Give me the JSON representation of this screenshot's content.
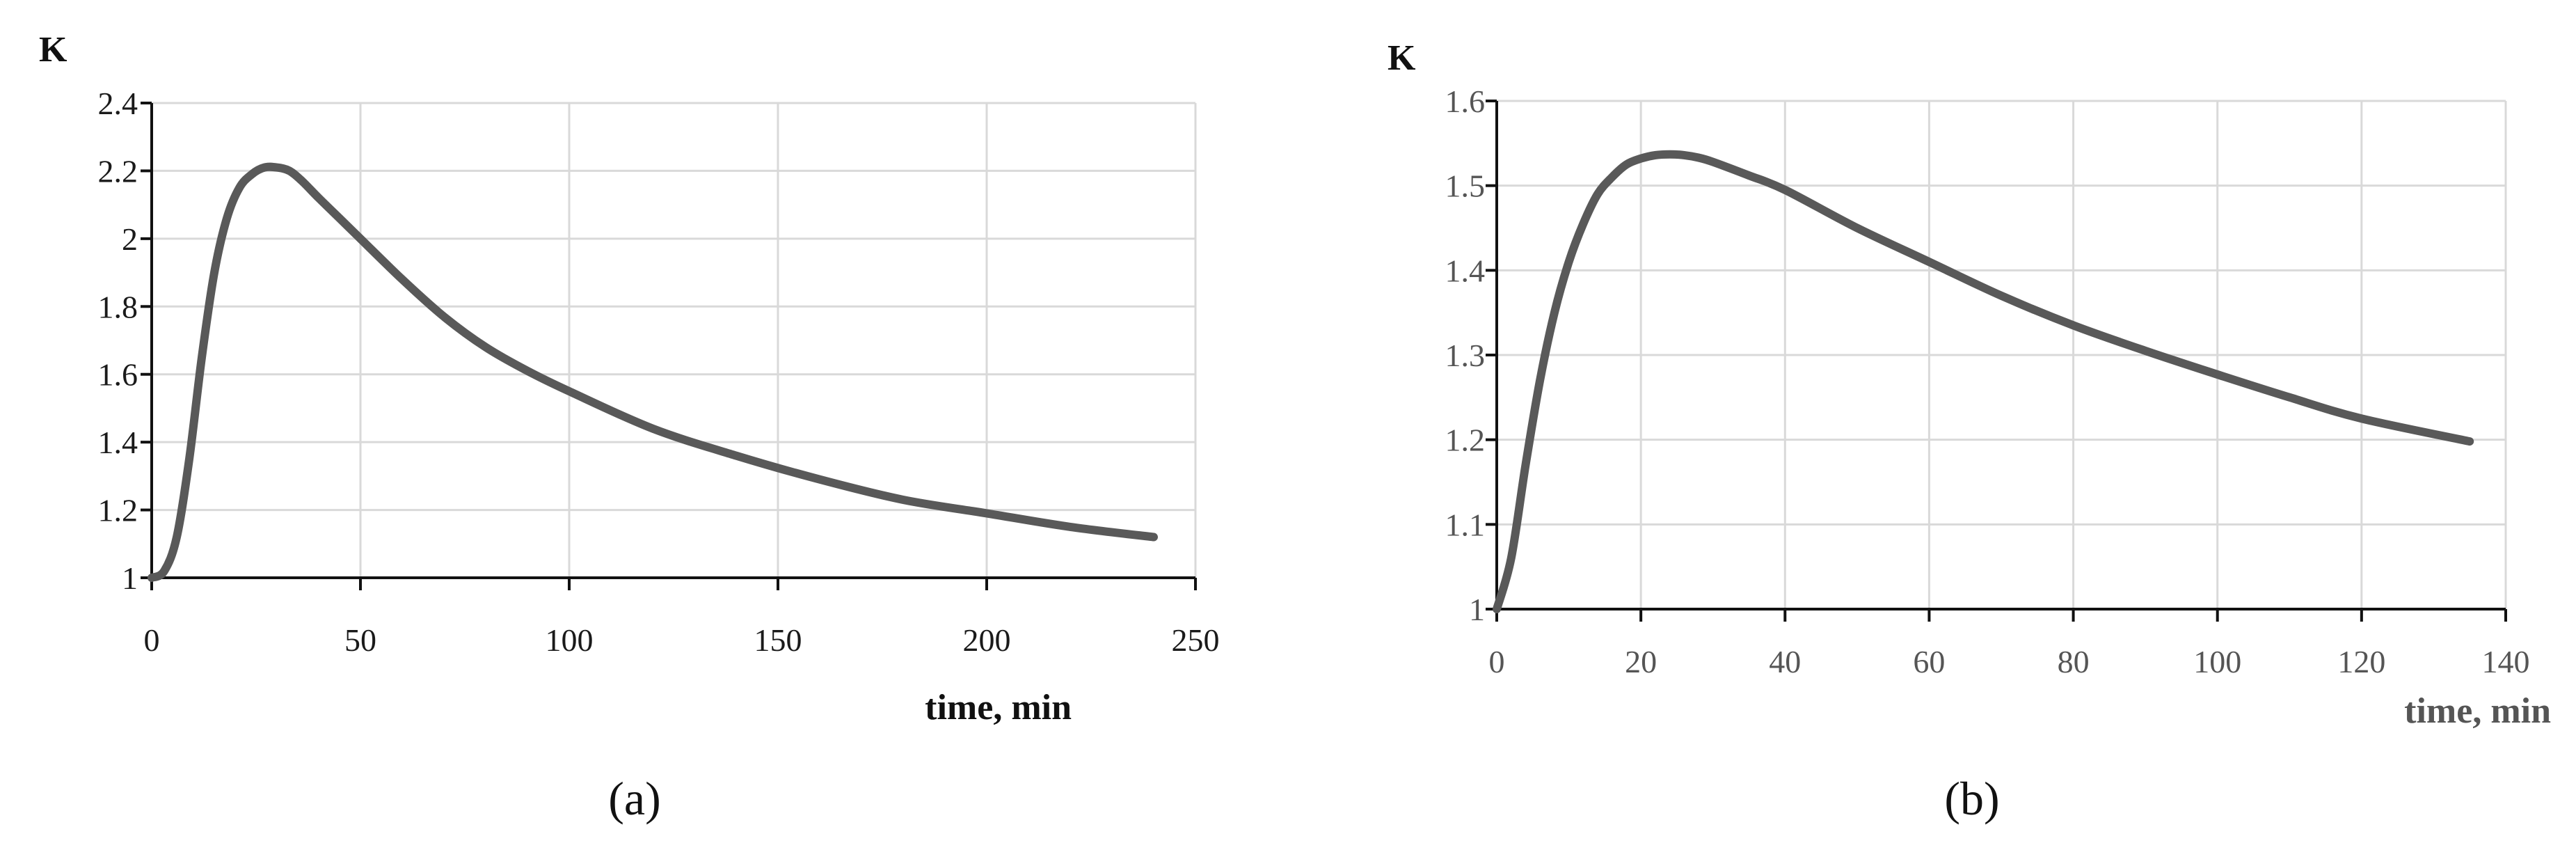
{
  "chart_data": [
    {
      "type": "line",
      "panel_label": "(a)",
      "ylabel": "K",
      "xlabel": "time, min",
      "xlim": [
        0,
        250
      ],
      "ylim": [
        1,
        2.4
      ],
      "x_ticks": [
        "0",
        "50",
        "100",
        "150",
        "200",
        "250"
      ],
      "y_ticks": [
        "1",
        "1.2",
        "1.4",
        "1.6",
        "1.8",
        "2",
        "2.2",
        "2.4"
      ],
      "grid": true,
      "series": [
        {
          "color": "#595959",
          "x": [
            0,
            3,
            6,
            9,
            12,
            15,
            18,
            21,
            24,
            27,
            30,
            33,
            36,
            40,
            45,
            50,
            60,
            70,
            80,
            90,
            100,
            120,
            140,
            160,
            180,
            200,
            220,
            240
          ],
          "y": [
            1.0,
            1.02,
            1.12,
            1.35,
            1.65,
            1.9,
            2.06,
            2.15,
            2.19,
            2.21,
            2.21,
            2.2,
            2.17,
            2.12,
            2.06,
            2.0,
            1.88,
            1.77,
            1.68,
            1.61,
            1.55,
            1.44,
            1.36,
            1.29,
            1.23,
            1.19,
            1.15,
            1.12
          ]
        }
      ]
    },
    {
      "type": "line",
      "panel_label": "(b)",
      "ylabel": "K",
      "xlabel": "time, min",
      "xlim": [
        0,
        140
      ],
      "ylim": [
        1,
        1.6
      ],
      "x_ticks": [
        "0",
        "20",
        "40",
        "60",
        "80",
        "100",
        "120",
        "140"
      ],
      "y_ticks": [
        "1",
        "1.1",
        "1.2",
        "1.3",
        "1.4",
        "1.5",
        "1.6"
      ],
      "grid": true,
      "series": [
        {
          "color": "#595959",
          "x": [
            0,
            2,
            4,
            6,
            8,
            10,
            12,
            14,
            16,
            18,
            20,
            22,
            24,
            26,
            28,
            30,
            35,
            40,
            50,
            60,
            70,
            80,
            90,
            100,
            110,
            120,
            135
          ],
          "y": [
            1.0,
            1.06,
            1.17,
            1.27,
            1.35,
            1.41,
            1.455,
            1.49,
            1.51,
            1.525,
            1.532,
            1.536,
            1.537,
            1.536,
            1.533,
            1.528,
            1.512,
            1.495,
            1.45,
            1.41,
            1.37,
            1.335,
            1.305,
            1.277,
            1.25,
            1.225,
            1.198
          ]
        }
      ]
    }
  ]
}
